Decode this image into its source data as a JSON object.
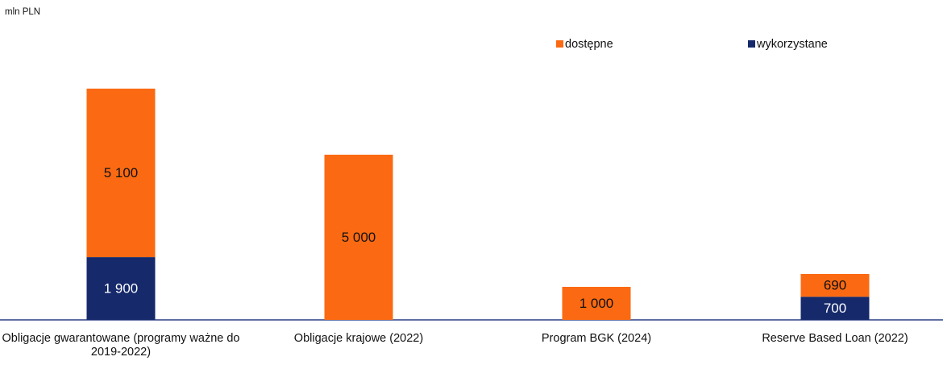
{
  "chart_data": {
    "type": "stacked_bar",
    "unit_label": "mln PLN",
    "categories": [
      "Obligacje gwarantowane (programy ważne do 2019-2022)",
      "Obligacje krajowe (2022)",
      "Program BGK (2024)",
      "Reserve Based Loan (2022)"
    ],
    "series": [
      {
        "name": "dostępne",
        "color": "#fb6a12",
        "values": [
          5100,
          5000,
          1000,
          690
        ],
        "value_labels": [
          "5 100",
          "5 000",
          "1 000",
          "690"
        ]
      },
      {
        "name": "wykorzystane",
        "color": "#15296b",
        "values": [
          1900,
          null,
          null,
          700
        ],
        "value_labels": [
          "1 900",
          null,
          null,
          "700"
        ]
      }
    ]
  }
}
